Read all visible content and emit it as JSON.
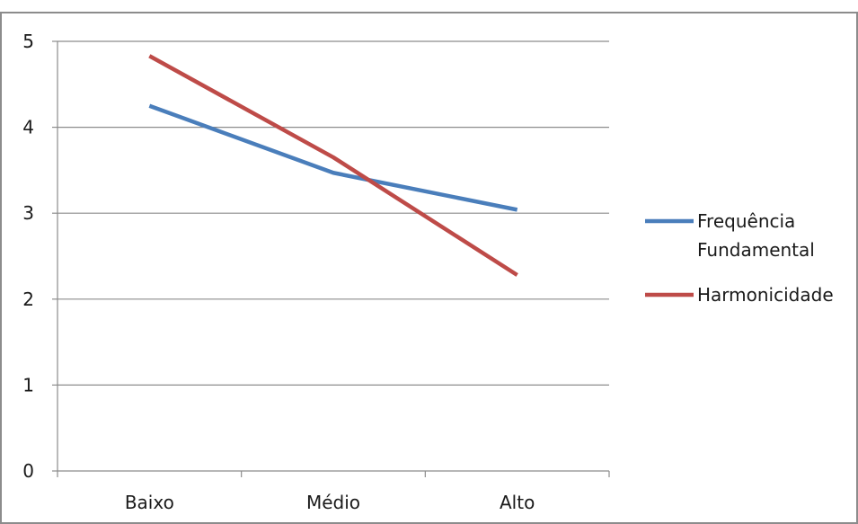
{
  "chart_data": {
    "type": "line",
    "categories": [
      "Baixo",
      "Médio",
      "Alto"
    ],
    "series": [
      {
        "name": "Frequência Fundamental",
        "name_lines": [
          "Frequência",
          "Fundamental"
        ],
        "values": [
          4.25,
          3.47,
          3.04
        ],
        "color": "#4a7ebb"
      },
      {
        "name": "Harmonicidade",
        "name_lines": [
          "Harmonicidade"
        ],
        "values": [
          4.83,
          3.65,
          2.28
        ],
        "color": "#be4b48"
      }
    ],
    "title": "",
    "xlabel": "",
    "ylabel": "",
    "ylim": [
      0,
      5
    ],
    "yticks": [
      "0",
      "1",
      "2",
      "3",
      "4",
      "5"
    ],
    "grid": true,
    "legend": "right"
  }
}
